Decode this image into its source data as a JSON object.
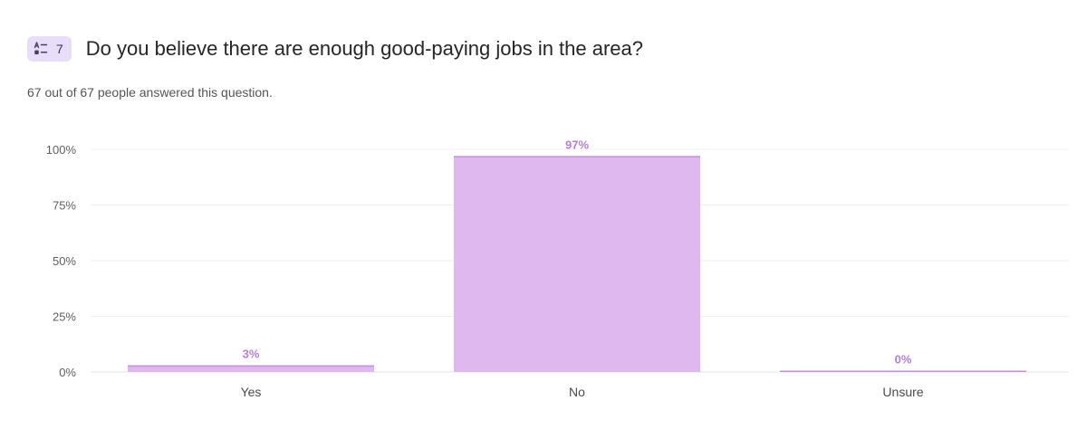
{
  "question": {
    "icon": "multiple-choice-icon",
    "number": "7",
    "title": "Do you believe there are enough good-paying jobs in the area?"
  },
  "summary": "67 out of 67 people answered this question.",
  "colors": {
    "bar_fill": "#dfb8f0",
    "bar_top": "#c391de",
    "data_label": "#b27fd6",
    "badge_bg": "#e8defa"
  },
  "chart_data": {
    "type": "bar",
    "categories": [
      "Yes",
      "No",
      "Unsure"
    ],
    "values": [
      3,
      97,
      0
    ],
    "value_labels": [
      "3%",
      "97%",
      "0%"
    ],
    "ylim": [
      0,
      100
    ],
    "yticks": [
      0,
      25,
      50,
      75,
      100
    ],
    "ytick_labels": [
      "0%",
      "25%",
      "50%",
      "75%",
      "100%"
    ],
    "grid": true,
    "legend": "none"
  }
}
